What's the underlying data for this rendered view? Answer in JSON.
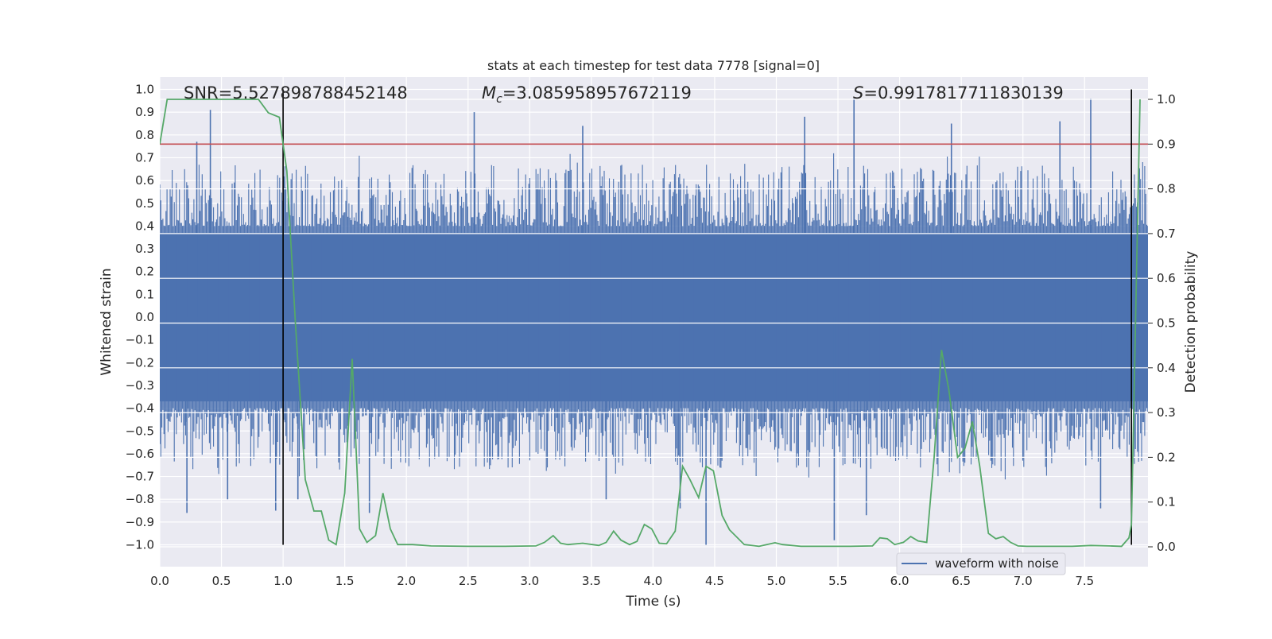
{
  "chart_data": {
    "type": "line",
    "title": "stats at each timestep for test data 7778 [signal=0]",
    "xlabel": "Time (s)",
    "ylabel_left": "Whitened strain",
    "ylabel_right": "Detection probability",
    "xlim": [
      0.0,
      8.0
    ],
    "ylim_left": [
      -1.1,
      1.05
    ],
    "ylim_right": [
      -0.045,
      1.045
    ],
    "x_ticks": [
      0.0,
      0.5,
      1.0,
      1.5,
      2.0,
      2.5,
      3.0,
      3.5,
      4.0,
      4.5,
      5.0,
      5.5,
      6.0,
      6.5,
      7.0,
      7.5
    ],
    "y_ticks_left": [
      1.0,
      0.9,
      0.8,
      0.7,
      0.6,
      0.5,
      0.4,
      0.3,
      0.2,
      0.1,
      0.0,
      -0.1,
      -0.2,
      -0.3,
      -0.4,
      -0.5,
      -0.6,
      -0.7,
      -0.8,
      -0.9,
      -1.0
    ],
    "y_ticks_right": [
      1.0,
      0.9,
      0.8,
      0.7,
      0.6,
      0.5,
      0.4,
      0.3,
      0.2,
      0.1,
      0.0
    ],
    "annotations": {
      "snr": "SNR=5.527898788452148",
      "mc": "=3.085958957672119",
      "mc_symbol": "M",
      "mc_sub": "c",
      "s": "=0.9917817711830139",
      "s_symbol": "S"
    },
    "legend": {
      "label": "waveform with noise",
      "loc": "lower-right"
    },
    "threshold": {
      "axis": "right",
      "value": 0.9,
      "color": "#c44e52"
    },
    "vlines": [
      {
        "x": 1.0,
        "ymin": -1.0,
        "ymax": 1.0
      },
      {
        "x": 7.88,
        "ymin": -1.0,
        "ymax": 1.0
      }
    ],
    "waveform": {
      "name": "waveform with noise",
      "color": "#4c72b0",
      "envelope_core": 0.37,
      "envelope_typical": 0.56,
      "peaks": [
        {
          "x": 0.22,
          "y": -0.86
        },
        {
          "x": 0.3,
          "y": 0.77
        },
        {
          "x": 0.41,
          "y": 0.91
        },
        {
          "x": 0.55,
          "y": -0.8
        },
        {
          "x": 0.94,
          "y": -0.85
        },
        {
          "x": 1.12,
          "y": -0.8
        },
        {
          "x": 1.7,
          "y": -0.86
        },
        {
          "x": 2.55,
          "y": 0.9
        },
        {
          "x": 3.43,
          "y": 0.84
        },
        {
          "x": 3.62,
          "y": -0.8
        },
        {
          "x": 4.22,
          "y": -0.84
        },
        {
          "x": 4.43,
          "y": -1.0
        },
        {
          "x": 5.23,
          "y": 0.88
        },
        {
          "x": 5.47,
          "y": -0.98
        },
        {
          "x": 5.63,
          "y": 0.96
        },
        {
          "x": 5.73,
          "y": -0.87
        },
        {
          "x": 6.42,
          "y": 0.85
        },
        {
          "x": 7.3,
          "y": 0.86
        },
        {
          "x": 7.55,
          "y": 0.96
        },
        {
          "x": 7.63,
          "y": -0.84
        }
      ]
    },
    "probability": {
      "name": "detection probability",
      "color": "#55a868",
      "x": [
        0.0,
        0.06,
        0.8,
        0.88,
        0.97,
        1.03,
        1.1,
        1.18,
        1.25,
        1.31,
        1.37,
        1.43,
        1.5,
        1.56,
        1.62,
        1.68,
        1.75,
        1.81,
        1.87,
        1.93,
        2.05,
        2.2,
        2.5,
        2.8,
        3.05,
        3.12,
        3.19,
        3.25,
        3.31,
        3.43,
        3.56,
        3.62,
        3.68,
        3.74,
        3.81,
        3.87,
        3.93,
        3.99,
        4.05,
        4.11,
        4.18,
        4.24,
        4.3,
        4.37,
        4.43,
        4.49,
        4.56,
        4.62,
        4.74,
        4.86,
        4.99,
        5.05,
        5.2,
        5.4,
        5.6,
        5.78,
        5.84,
        5.9,
        5.96,
        6.03,
        6.09,
        6.15,
        6.22,
        6.28,
        6.34,
        6.4,
        6.47,
        6.53,
        6.59,
        6.65,
        6.72,
        6.78,
        6.84,
        6.9,
        6.96,
        7.03,
        7.15,
        7.4,
        7.55,
        7.7,
        7.8,
        7.86,
        7.88,
        7.95
      ],
      "y": [
        0.9,
        1.0,
        1.0,
        0.97,
        0.96,
        0.84,
        0.5,
        0.15,
        0.08,
        0.08,
        0.015,
        0.005,
        0.12,
        0.42,
        0.04,
        0.01,
        0.025,
        0.12,
        0.04,
        0.005,
        0.005,
        0.002,
        0.001,
        0.001,
        0.002,
        0.01,
        0.025,
        0.008,
        0.005,
        0.008,
        0.003,
        0.01,
        0.035,
        0.015,
        0.005,
        0.012,
        0.05,
        0.04,
        0.008,
        0.007,
        0.035,
        0.18,
        0.15,
        0.11,
        0.18,
        0.17,
        0.07,
        0.038,
        0.005,
        0.001,
        0.009,
        0.005,
        0.001,
        0.001,
        0.001,
        0.002,
        0.02,
        0.018,
        0.005,
        0.01,
        0.023,
        0.013,
        0.01,
        0.2,
        0.44,
        0.35,
        0.2,
        0.22,
        0.28,
        0.18,
        0.03,
        0.018,
        0.023,
        0.01,
        0.002,
        0.001,
        0.001,
        0.001,
        0.003,
        0.002,
        0.001,
        0.02,
        0.05,
        1.0
      ]
    }
  }
}
